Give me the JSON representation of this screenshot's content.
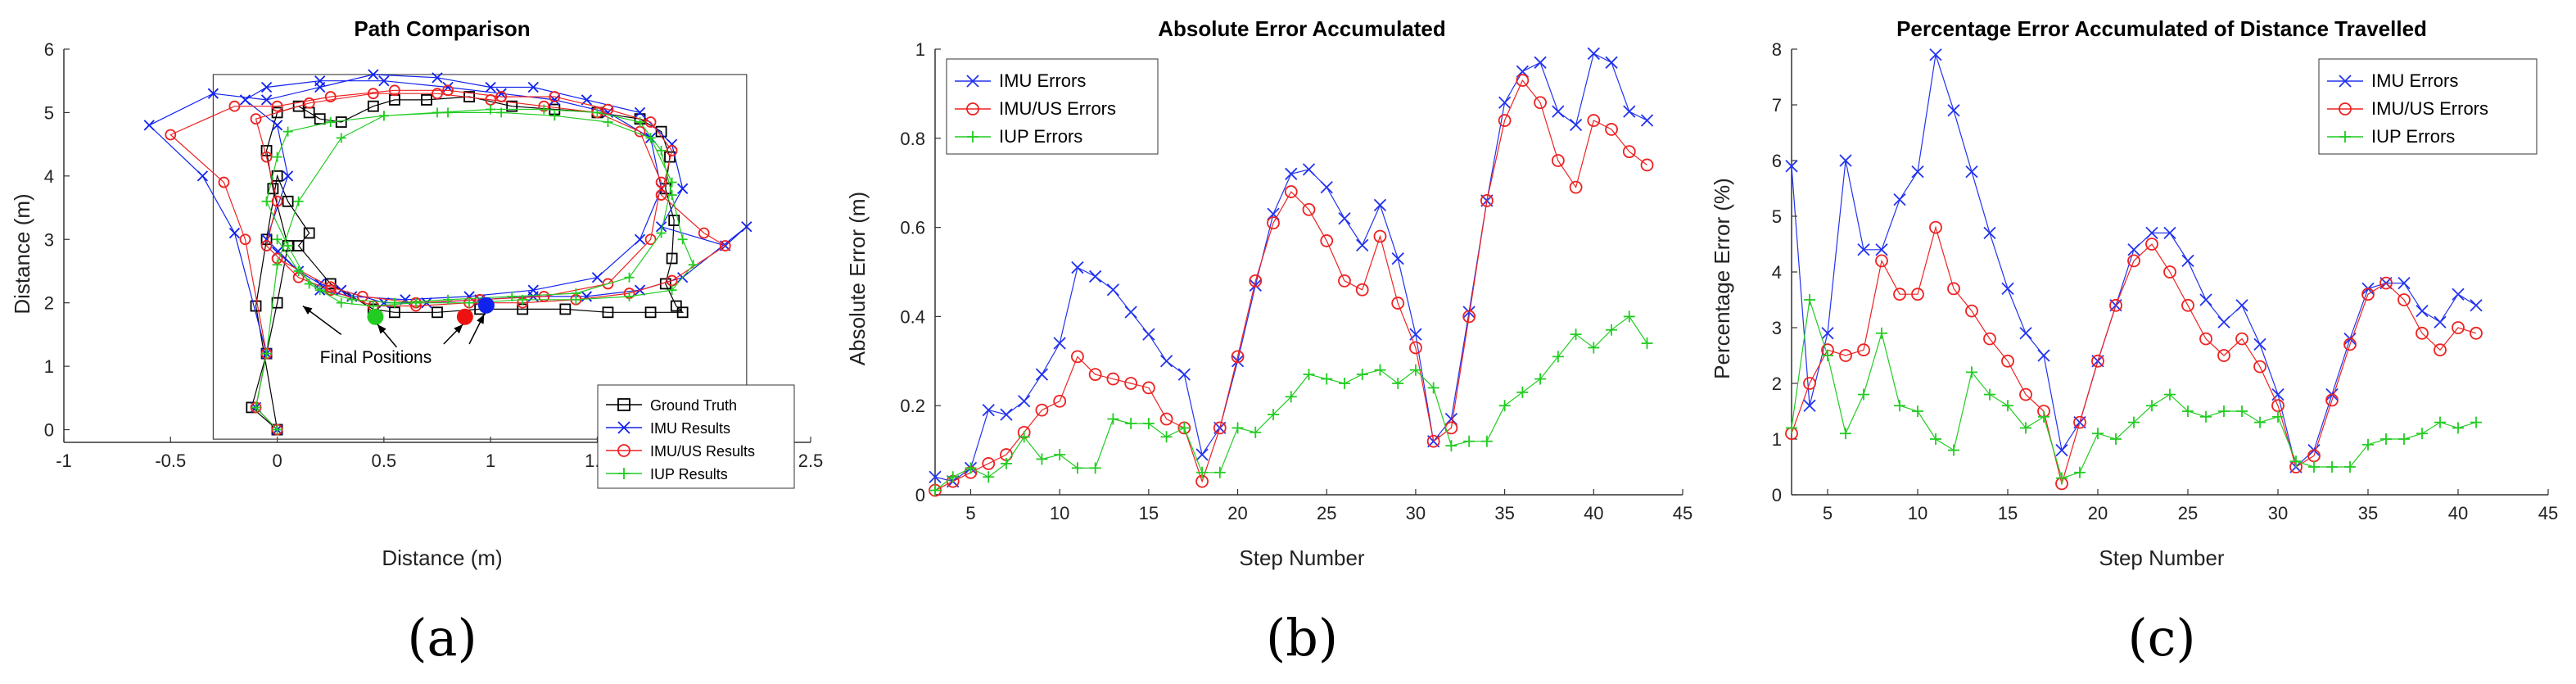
{
  "chart_data": [
    {
      "type": "line",
      "title": "Path Comparison",
      "xlabel": "Distance (m)",
      "ylabel": "Distance (m)",
      "xlim": [
        -1,
        2.5
      ],
      "ylim": [
        -0.2,
        6
      ],
      "xticks": [
        "-1",
        "-0.5",
        "0",
        "0.5",
        "1",
        "1.5",
        "2",
        "2.5"
      ],
      "yticks": [
        "0",
        "1",
        "2",
        "3",
        "4",
        "5",
        "6"
      ],
      "caption": "(a)",
      "annotation": "Final Positions",
      "legend": "bottom-right",
      "final_positions": [
        {
          "x": 0.46,
          "y": 1.78,
          "color": "#22cc22"
        },
        {
          "x": 0.88,
          "y": 1.78,
          "color": "#ee1111"
        },
        {
          "x": 0.98,
          "y": 1.96,
          "color": "#1122ee"
        }
      ],
      "series": [
        {
          "name": "Ground Truth",
          "color": "#000000",
          "marker": "square",
          "x": [
            0,
            -0.12,
            -0.05,
            0,
            0.05,
            -0.02,
            -0.05,
            0,
            0.1,
            0.15,
            0.2,
            0.3,
            0.45,
            0.55,
            0.7,
            0.9,
            1.1,
            1.3,
            1.5,
            1.7,
            1.8,
            1.84,
            1.82,
            1.86,
            1.85,
            1.82,
            1.87,
            1.9,
            1.75,
            1.55,
            1.35,
            1.15,
            0.95,
            0.75,
            0.55,
            0.45,
            0.25,
            0.1,
            0.15,
            0.05,
            0,
            -0.05,
            -0.1,
            0
          ],
          "y": [
            0,
            0.35,
            1.2,
            2,
            2.9,
            3.8,
            4.4,
            5.0,
            5.1,
            5.0,
            4.9,
            4.85,
            5.1,
            5.2,
            5.2,
            5.25,
            5.1,
            5.05,
            5.0,
            4.9,
            4.7,
            4.3,
            3.8,
            3.3,
            2.7,
            2.3,
            1.95,
            1.85,
            1.85,
            1.85,
            1.9,
            1.9,
            1.9,
            1.85,
            1.85,
            1.9,
            2.3,
            2.9,
            3.1,
            3.6,
            4.0,
            3.0,
            1.95,
            0
          ]
        },
        {
          "name": "IMU Results",
          "color": "#1122ee",
          "marker": "x",
          "x": [
            0,
            -0.1,
            -0.05,
            -0.2,
            -0.35,
            -0.6,
            -0.3,
            -0.05,
            0.2,
            0.45,
            0.75,
            1.0,
            1.2,
            1.45,
            1.7,
            1.85,
            1.9,
            1.8,
            2.1,
            2.2,
            1.9,
            1.7,
            1.45,
            1.2,
            0.95,
            0.7,
            0.5,
            0.3,
            0.2,
            0.1,
            -0.05,
            0.05,
            0,
            -0.15,
            -0.05,
            0.2,
            0.5,
            0.8,
            1.05,
            1.3,
            1.55,
            1.75,
            1.8,
            1.7,
            1.5,
            1.2,
            0.9,
            0.6,
            0.35,
            0.2,
            0
          ],
          "y": [
            0,
            0.35,
            1.2,
            3.1,
            4.0,
            4.8,
            5.3,
            5.2,
            5.4,
            5.6,
            5.55,
            5.4,
            5.4,
            5.2,
            5.0,
            4.5,
            3.8,
            3.2,
            2.9,
            3.2,
            2.4,
            2.2,
            2.1,
            2.1,
            2.05,
            2.0,
            2.0,
            2.2,
            2.3,
            2.5,
            3.0,
            4.0,
            4.8,
            5.2,
            5.4,
            5.5,
            5.5,
            5.4,
            5.3,
            5.2,
            5.0,
            4.6,
            3.8,
            3.0,
            2.4,
            2.2,
            2.1,
            2.05,
            2.1,
            2.2,
            2.8
          ]
        },
        {
          "name": "IMU/US Results",
          "color": "#ee2222",
          "marker": "circle",
          "x": [
            0,
            -0.1,
            -0.05,
            -0.15,
            -0.25,
            -0.5,
            -0.2,
            0,
            0.25,
            0.55,
            0.8,
            1.05,
            1.3,
            1.55,
            1.75,
            1.85,
            1.8,
            2.0,
            2.1,
            1.85,
            1.65,
            1.4,
            1.15,
            0.9,
            0.65,
            0.45,
            0.25,
            0.1,
            -0.05,
            0,
            -0.05,
            -0.1,
            0.15,
            0.45,
            0.75,
            1.0,
            1.25,
            1.5,
            1.7,
            1.8,
            1.75,
            1.55,
            1.25,
            0.95,
            0.65,
            0.4,
            0.25,
            0
          ],
          "y": [
            0,
            0.35,
            1.2,
            3.0,
            3.9,
            4.65,
            5.1,
            5.1,
            5.25,
            5.35,
            5.35,
            5.25,
            5.25,
            5.05,
            4.85,
            4.4,
            3.7,
            3.1,
            2.9,
            2.35,
            2.15,
            2.05,
            2.0,
            2.0,
            1.95,
            1.95,
            2.2,
            2.4,
            2.9,
            3.6,
            4.3,
            4.9,
            5.15,
            5.3,
            5.3,
            5.2,
            5.1,
            5.0,
            4.7,
            3.9,
            3.0,
            2.3,
            2.1,
            2.05,
            2.0,
            2.1,
            2.25,
            2.7
          ]
        },
        {
          "name": "IUP Results",
          "color": "#22cc22",
          "marker": "plus",
          "x": [
            0,
            -0.1,
            -0.05,
            0,
            0.1,
            0.3,
            0.5,
            0.75,
            1.0,
            1.25,
            1.5,
            1.7,
            1.8,
            1.85,
            1.9,
            1.95,
            1.85,
            1.65,
            1.4,
            1.15,
            0.9,
            0.65,
            0.45,
            0.3,
            0.15,
            0.05,
            -0.05,
            0,
            0.05,
            0.25,
            0.5,
            0.8,
            1.05,
            1.3,
            1.55,
            1.75,
            1.85,
            1.8,
            1.65,
            1.4,
            1.1,
            0.8,
            0.55,
            0.35,
            0.2,
            0.1,
            0
          ],
          "y": [
            0,
            0.35,
            1.2,
            2.6,
            3.6,
            4.6,
            4.95,
            5.0,
            5.05,
            5.05,
            5.0,
            4.85,
            4.4,
            3.7,
            3.0,
            2.6,
            2.2,
            2.1,
            2.05,
            2.05,
            2.0,
            2.0,
            1.95,
            2.0,
            2.3,
            2.9,
            3.6,
            4.3,
            4.7,
            4.85,
            4.95,
            5.0,
            5.0,
            4.95,
            4.85,
            4.6,
            3.9,
            3.1,
            2.4,
            2.15,
            2.1,
            2.05,
            2.0,
            2.05,
            2.2,
            2.5,
            3.0
          ]
        }
      ]
    },
    {
      "type": "line",
      "title": "Absolute Error Accumulated",
      "xlabel": "Step Number",
      "ylabel": "Absolute Error (m)",
      "xlim": [
        3,
        45
      ],
      "ylim": [
        0,
        1
      ],
      "xticks": [
        "5",
        "10",
        "15",
        "20",
        "25",
        "30",
        "35",
        "40",
        "45"
      ],
      "yticks": [
        "0",
        "0.2",
        "0.4",
        "0.6",
        "0.8",
        "1"
      ],
      "caption": "(b)",
      "legend": "top-left",
      "x": [
        3,
        4,
        5,
        6,
        7,
        8,
        9,
        10,
        11,
        12,
        13,
        14,
        15,
        16,
        17,
        18,
        19,
        20,
        21,
        22,
        23,
        24,
        25,
        26,
        27,
        28,
        29,
        30,
        31,
        32,
        33,
        34,
        35,
        36,
        37,
        38,
        39,
        40,
        41,
        42,
        43
      ],
      "series": [
        {
          "name": "IMU Errors",
          "color": "#2233ee",
          "marker": "x",
          "values": [
            0.04,
            0.03,
            0.06,
            0.19,
            0.18,
            0.21,
            0.27,
            0.34,
            0.51,
            0.49,
            0.46,
            0.41,
            0.36,
            0.3,
            0.27,
            0.09,
            0.15,
            0.3,
            0.47,
            0.63,
            0.72,
            0.73,
            0.69,
            0.62,
            0.56,
            0.65,
            0.53,
            0.36,
            0.12,
            0.17,
            0.41,
            0.66,
            0.88,
            0.95,
            0.97,
            0.86,
            0.83,
            0.99,
            0.97,
            0.86,
            0.84
          ]
        },
        {
          "name": "IMU/US Errors",
          "color": "#ee2222",
          "marker": "circle",
          "values": [
            0.01,
            0.03,
            0.05,
            0.07,
            0.09,
            0.14,
            0.19,
            0.21,
            0.31,
            0.27,
            0.26,
            0.25,
            0.24,
            0.17,
            0.15,
            0.03,
            0.15,
            0.31,
            0.48,
            0.61,
            0.68,
            0.64,
            0.57,
            0.48,
            0.46,
            0.58,
            0.43,
            0.33,
            0.12,
            0.15,
            0.4,
            0.66,
            0.84,
            0.93,
            0.88,
            0.75,
            0.69,
            0.84,
            0.82,
            0.77,
            0.74
          ]
        },
        {
          "name": "IUP Errors",
          "color": "#22cc22",
          "marker": "plus",
          "values": [
            0.01,
            0.04,
            0.06,
            0.04,
            0.07,
            0.13,
            0.08,
            0.09,
            0.06,
            0.06,
            0.17,
            0.16,
            0.16,
            0.13,
            0.15,
            0.05,
            0.05,
            0.15,
            0.14,
            0.18,
            0.22,
            0.27,
            0.26,
            0.25,
            0.27,
            0.28,
            0.25,
            0.28,
            0.24,
            0.11,
            0.12,
            0.12,
            0.2,
            0.23,
            0.26,
            0.31,
            0.36,
            0.33,
            0.37,
            0.4,
            0.34
          ]
        }
      ]
    },
    {
      "type": "line",
      "title": "Percentage Error Accumulated of Distance Travelled",
      "xlabel": "Step Number",
      "ylabel": "Percentage Error (%)",
      "xlim": [
        3,
        45
      ],
      "ylim": [
        0,
        8
      ],
      "xticks": [
        "5",
        "10",
        "15",
        "20",
        "25",
        "30",
        "35",
        "40",
        "45"
      ],
      "yticks": [
        "0",
        "1",
        "2",
        "3",
        "4",
        "5",
        "6",
        "7",
        "8"
      ],
      "caption": "(c)",
      "legend": "top-right",
      "x": [
        3,
        4,
        5,
        6,
        7,
        8,
        9,
        10,
        11,
        12,
        13,
        14,
        15,
        16,
        17,
        18,
        19,
        20,
        21,
        22,
        23,
        24,
        25,
        26,
        27,
        28,
        29,
        30,
        31,
        32,
        33,
        34,
        35,
        36,
        37,
        38,
        39,
        40,
        41
      ],
      "series": [
        {
          "name": "IMU Errors",
          "color": "#2233ee",
          "marker": "x",
          "values": [
            5.9,
            1.6,
            2.9,
            6.0,
            4.4,
            4.4,
            5.3,
            5.8,
            7.9,
            6.9,
            5.8,
            4.7,
            3.7,
            2.9,
            2.5,
            0.8,
            1.3,
            2.4,
            3.4,
            4.4,
            4.7,
            4.7,
            4.2,
            3.5,
            3.1,
            3.4,
            2.7,
            1.8,
            0.5,
            0.8,
            1.8,
            2.8,
            3.7,
            3.8,
            3.8,
            3.3,
            3.1,
            3.6,
            3.4
          ]
        },
        {
          "name": "IMU/US Errors",
          "color": "#ee2222",
          "marker": "circle",
          "values": [
            1.1,
            2.0,
            2.6,
            2.5,
            2.6,
            4.2,
            3.6,
            3.6,
            4.8,
            3.7,
            3.3,
            2.8,
            2.4,
            1.8,
            1.5,
            0.2,
            1.3,
            2.4,
            3.4,
            4.2,
            4.5,
            4.0,
            3.4,
            2.8,
            2.5,
            2.8,
            2.3,
            1.6,
            0.5,
            0.7,
            1.7,
            2.7,
            3.6,
            3.8,
            3.5,
            2.9,
            2.6,
            3.0,
            2.9
          ]
        },
        {
          "name": "IUP Errors",
          "color": "#22cc22",
          "marker": "plus",
          "values": [
            1.2,
            3.5,
            2.5,
            1.1,
            1.8,
            2.9,
            1.6,
            1.5,
            1.0,
            0.8,
            2.2,
            1.8,
            1.6,
            1.2,
            1.4,
            0.3,
            0.4,
            1.1,
            1.0,
            1.3,
            1.6,
            1.8,
            1.5,
            1.4,
            1.5,
            1.5,
            1.3,
            1.4,
            0.6,
            0.5,
            0.5,
            0.5,
            0.9,
            1.0,
            1.0,
            1.1,
            1.3,
            1.2,
            1.3
          ]
        }
      ]
    }
  ]
}
